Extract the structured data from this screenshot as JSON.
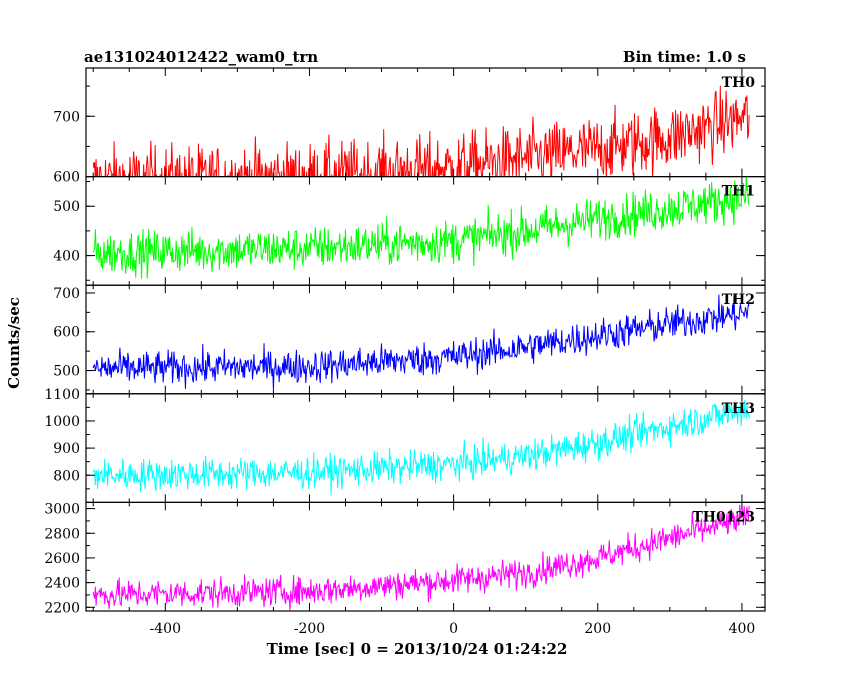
{
  "header": {
    "title": "ae131024012422_wam0_trn",
    "bin_time": "Bin time: 1.0 s"
  },
  "chart_data": {
    "type": "line",
    "xlabel": "Time [sec] 0 = 2013/10/24 01:24:22",
    "ylabel": "Counts/sec",
    "xlim": [
      -510,
      432
    ],
    "x_ticks": [
      -400,
      -200,
      0,
      200,
      400
    ],
    "x_start": -500,
    "x_end": 410,
    "bin_time_s": 1.0,
    "panels": [
      {
        "name": "TH0",
        "color": "#ff0000",
        "ylim": [
          600,
          780
        ],
        "y_ticks": [
          600,
          700
        ],
        "y_minor_ticks": [
          600,
          650,
          700,
          750
        ],
        "y_tick_labels": [
          "600",
          "700"
        ],
        "extra_tick_labels": [
          {
            "value": 600,
            "label": "600"
          }
        ],
        "trend": [
          [
            -500,
            595
          ],
          [
            -200,
            600
          ],
          [
            0,
            615
          ],
          [
            200,
            645
          ],
          [
            300,
            665
          ],
          [
            410,
            700
          ]
        ],
        "noise": 28
      },
      {
        "name": "TH1",
        "color": "#00ff00",
        "ylim": [
          340,
          560
        ],
        "y_ticks": [
          400,
          500
        ],
        "y_minor_ticks": [
          350,
          400,
          450,
          500,
          550
        ],
        "y_tick_labels": [
          "400",
          "500"
        ],
        "trend": [
          [
            -500,
            405
          ],
          [
            -200,
            415
          ],
          [
            0,
            430
          ],
          [
            100,
            450
          ],
          [
            200,
            475
          ],
          [
            300,
            495
          ],
          [
            410,
            520
          ]
        ],
        "noise": 22
      },
      {
        "name": "TH2",
        "color": "#0000ff",
        "ylim": [
          440,
          720
        ],
        "y_ticks": [
          500,
          600,
          700
        ],
        "y_minor_ticks": [
          450,
          500,
          550,
          600,
          650,
          700
        ],
        "y_tick_labels": [
          "500",
          "600",
          "700"
        ],
        "trend": [
          [
            -500,
            505
          ],
          [
            -200,
            510
          ],
          [
            0,
            535
          ],
          [
            100,
            560
          ],
          [
            200,
            590
          ],
          [
            300,
            620
          ],
          [
            410,
            650
          ]
        ],
        "noise": 22
      },
      {
        "name": "TH3",
        "color": "#00ffff",
        "ylim": [
          700,
          1100
        ],
        "y_ticks": [
          800,
          900,
          1000,
          1100
        ],
        "y_minor_ticks": [
          700,
          750,
          800,
          850,
          900,
          950,
          1000,
          1050,
          1100
        ],
        "y_tick_labels": [
          "800",
          "900",
          "1000",
          "1100"
        ],
        "trend": [
          [
            -500,
            800
          ],
          [
            -200,
            810
          ],
          [
            0,
            840
          ],
          [
            100,
            870
          ],
          [
            200,
            920
          ],
          [
            300,
            980
          ],
          [
            410,
            1045
          ]
        ],
        "noise": 30
      },
      {
        "name": "TH0123",
        "color": "#ff00ff",
        "ylim": [
          2170,
          3050
        ],
        "y_ticks": [
          2200,
          2400,
          2600,
          2800,
          3000
        ],
        "y_minor_ticks": [
          2200,
          2300,
          2400,
          2500,
          2600,
          2700,
          2800,
          2900,
          3000
        ],
        "y_tick_labels": [
          "2200",
          "2400",
          "2600",
          "2800",
          "3000"
        ],
        "trend": [
          [
            -500,
            2300
          ],
          [
            -200,
            2330
          ],
          [
            0,
            2420
          ],
          [
            100,
            2480
          ],
          [
            200,
            2600
          ],
          [
            300,
            2760
          ],
          [
            410,
            2930
          ]
        ],
        "noise": 60
      }
    ]
  }
}
